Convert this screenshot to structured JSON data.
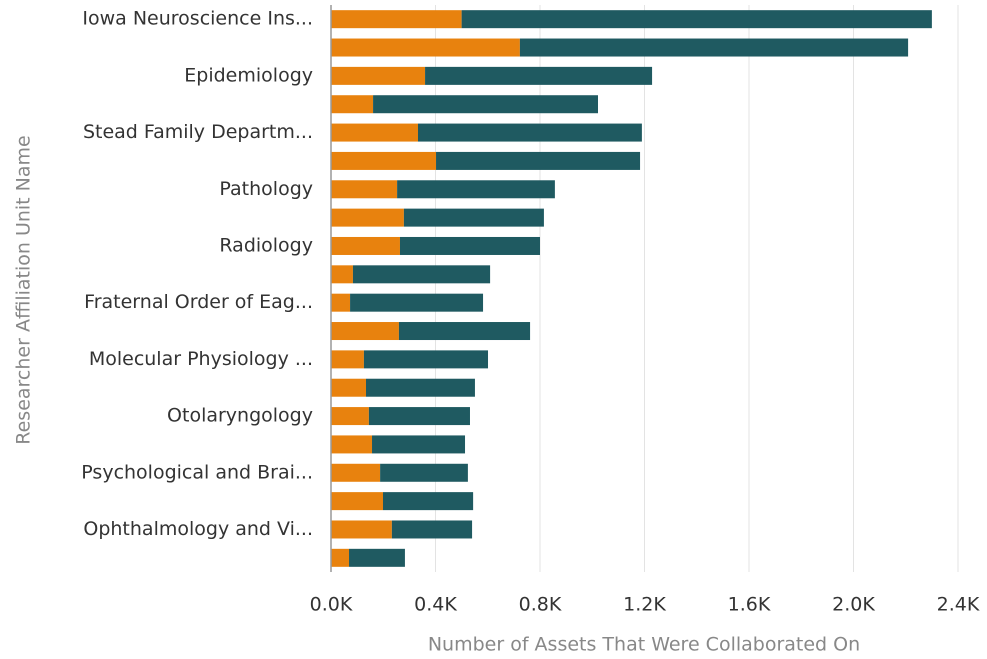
{
  "chart_data": {
    "type": "stacked-bar-horizontal",
    "x_label": "Number of Assets That Were Collaborated On",
    "y_label": "Researcher Affiliation Unit Name",
    "categories": [
      "Iowa Neuroscience Ins...",
      null,
      "Epidemiology",
      null,
      "Stead Family Departm...",
      null,
      "Pathology",
      null,
      "Radiology",
      null,
      "Fraternal Order of Eag...",
      null,
      "Molecular Physiology ...",
      null,
      "Otolaryngology",
      null,
      "Psychological and Brai...",
      null,
      "Ophthalmology and Vi...",
      null
    ],
    "series": [
      {
        "color": "#e8820e",
        "values": [
          500,
          723,
          360,
          161,
          333,
          402,
          253,
          279,
          264,
          84,
          73,
          260,
          126,
          134,
          145,
          157,
          188,
          199,
          233,
          69
        ]
      },
      {
        "color": "#1f5a61",
        "values": [
          1800,
          1486,
          869,
          861,
          857,
          781,
          604,
          536,
          536,
          525,
          509,
          502,
          475,
          417,
          387,
          356,
          336,
          345,
          307,
          214
        ]
      }
    ],
    "xlim": [
      0,
      2400
    ],
    "xticks": [
      {
        "value": 0,
        "label": "0.0K"
      },
      {
        "value": 400,
        "label": "0.4K"
      },
      {
        "value": 800,
        "label": "0.8K"
      },
      {
        "value": 1200,
        "label": "1.2K"
      },
      {
        "value": 1600,
        "label": "1.6K"
      },
      {
        "value": 2000,
        "label": "2.0K"
      },
      {
        "value": 2400,
        "label": "2.4K"
      }
    ],
    "grid": true
  }
}
